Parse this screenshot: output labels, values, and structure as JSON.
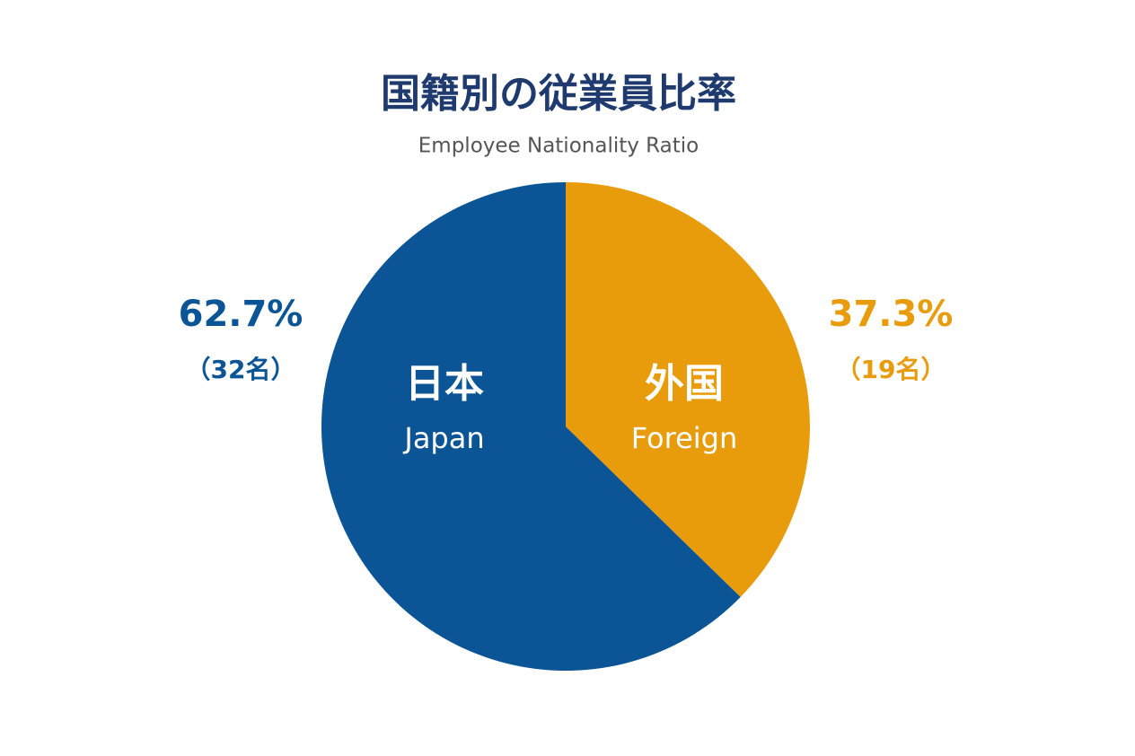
{
  "chart_data": {
    "type": "pie",
    "title": "国籍別の従業員比率",
    "subtitle": "Employee Nationality Ratio",
    "categories": [
      "日本",
      "外国"
    ],
    "categories_en": [
      "Japan",
      "Foreign"
    ],
    "values": [
      62.7,
      37.3
    ],
    "value_labels": [
      "62.7%",
      "37.3%"
    ],
    "count_labels": [
      "（32名）",
      "（19名）"
    ],
    "colors": [
      "#0b5596",
      "#e89c0c"
    ]
  }
}
